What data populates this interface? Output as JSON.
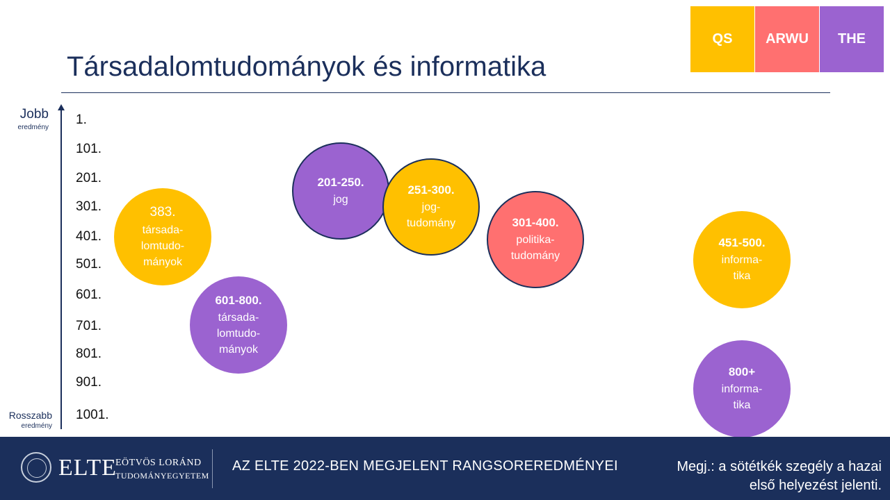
{
  "legend": [
    {
      "label": "QS",
      "color": "#ffc000"
    },
    {
      "label": "ARWU",
      "color": "#ff7070"
    },
    {
      "label": "THE",
      "color": "#9b63d0"
    }
  ],
  "title": "Társadalomtudományok és informatika",
  "axis": {
    "top_label": "Jobb",
    "top_sub": "eredmény",
    "bottom_label": "Rosszabb",
    "bottom_sub": "eredmény"
  },
  "chart_data": {
    "type": "scatter",
    "title": "Társadalomtudományok és informatika",
    "y_direction": "better-on-top",
    "y_ticks": [
      "1.",
      "101.",
      "201.",
      "301.",
      "401.",
      "501.",
      "601.",
      "701.",
      "801.",
      "901.",
      "1001."
    ],
    "series_colors": {
      "QS": "#ffc000",
      "ARWU": "#ff7070",
      "THE": "#9b63d0"
    },
    "points": [
      {
        "ranking": "QS",
        "rank_label": "383.",
        "rank_value": 383,
        "field": "társada-lomtudo-mányok",
        "lines": [
          "társada-",
          "lomtudo-",
          "mányok"
        ],
        "bold": false,
        "domestic_first": false
      },
      {
        "ranking": "THE",
        "rank_label": "601-800.",
        "rank_value": 700,
        "field": "társada-lomtudo-mányok",
        "lines": [
          "társada-",
          "lomtudo-",
          "mányok"
        ],
        "bold": true,
        "domestic_first": false
      },
      {
        "ranking": "THE",
        "rank_label": "201-250.",
        "rank_value": 225,
        "field": "jog",
        "lines": [
          "jog"
        ],
        "bold": true,
        "domestic_first": true
      },
      {
        "ranking": "QS",
        "rank_label": "251-300.",
        "rank_value": 275,
        "field": "jog-tudomány",
        "lines": [
          "jog-",
          "tudomány"
        ],
        "bold": true,
        "domestic_first": true
      },
      {
        "ranking": "ARWU",
        "rank_label": "301-400.",
        "rank_value": 350,
        "field": "politika-tudomány",
        "lines": [
          "politika-",
          "tudomány"
        ],
        "bold": true,
        "domestic_first": true
      },
      {
        "ranking": "QS",
        "rank_label": "451-500.",
        "rank_value": 475,
        "field": "informa-tika",
        "lines": [
          "informa-",
          "tika"
        ],
        "bold": true,
        "domestic_first": false
      },
      {
        "ranking": "THE",
        "rank_label": "800+",
        "rank_value": 900,
        "field": "informa-tika",
        "lines": [
          "informa-",
          "tika"
        ],
        "bold": true,
        "domestic_first": false
      }
    ]
  },
  "footer": {
    "logo_main": "ELTE",
    "logo_line1": "EÖTVÖS LORÁND",
    "logo_line2": "TUDOMÁNYEGYETEM",
    "headline": "AZ ELTE 2022-BEN MEGJELENT RANGSOREREDMÉNYEI",
    "note_line1": "Megj.: a sötétkék szegély a hazai",
    "note_line2": "első helyezést jelenti."
  }
}
